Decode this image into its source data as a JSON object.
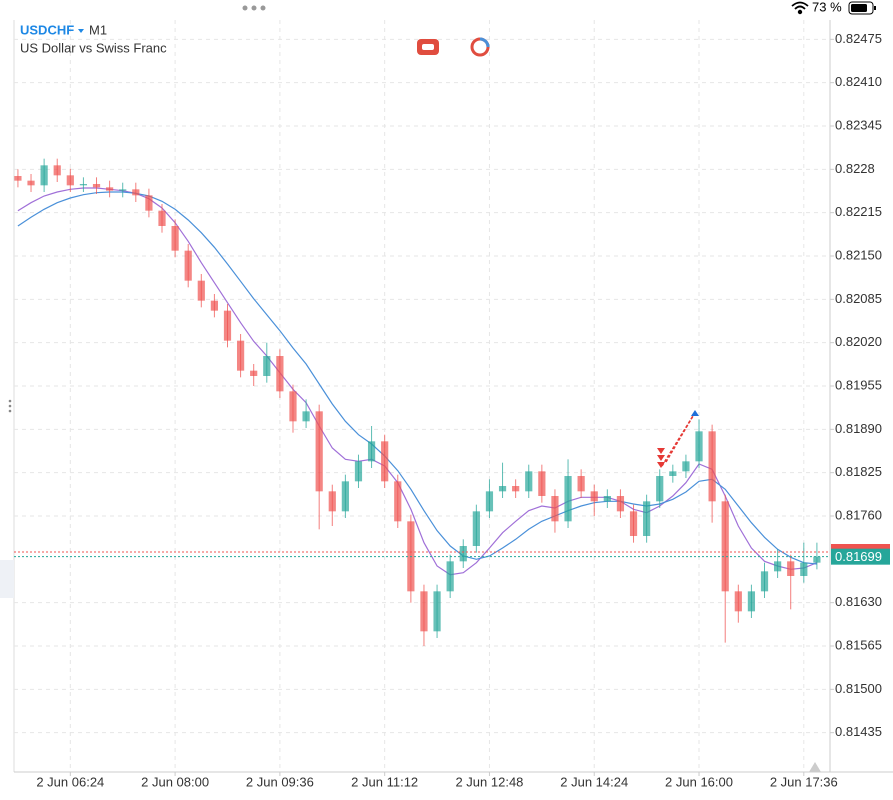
{
  "status": {
    "battery": "73 %"
  },
  "chart_data": {
    "type": "candlestick",
    "symbol": "USDCHF",
    "timeframe": "M1",
    "subtitle": "US Dollar vs Swiss Franc",
    "up_color": "#26a69a",
    "down_color": "#ef5350",
    "open": [
      0.8227,
      0.82263,
      0.82256,
      0.82286,
      0.82271,
      0.82256,
      0.82258,
      0.82253,
      0.82248,
      0.8225,
      0.82241,
      0.82218,
      0.82195,
      0.82158,
      0.82113,
      0.82083,
      0.82068,
      0.82023,
      0.81978,
      0.8197,
      0.82,
      0.81947,
      0.81902,
      0.81917,
      0.81797,
      0.81767,
      0.81812,
      0.81842,
      0.81872,
      0.81812,
      0.81752,
      0.81647,
      0.81587,
      0.81647,
      0.81692,
      0.81715,
      0.81767,
      0.81797,
      0.81805,
      0.81797,
      0.81827,
      0.8179,
      0.81752,
      0.8182,
      0.81797,
      0.81782,
      0.8179,
      0.81767,
      0.8173,
      0.81782,
      0.8182,
      0.81827,
      0.81842,
      0.81887,
      0.81782,
      0.81647,
      0.81617,
      0.81647,
      0.81677,
      0.81692,
      0.8167,
      0.8169
    ],
    "high": [
      0.8228,
      0.82273,
      0.82296,
      0.82296,
      0.82281,
      0.82268,
      0.82268,
      0.82263,
      0.8226,
      0.8226,
      0.82251,
      0.82228,
      0.82205,
      0.82168,
      0.82123,
      0.82093,
      0.82078,
      0.82033,
      0.81988,
      0.8202,
      0.8201,
      0.81957,
      0.81935,
      0.81927,
      0.81807,
      0.81822,
      0.81852,
      0.81895,
      0.81882,
      0.81822,
      0.81762,
      0.81657,
      0.81657,
      0.81702,
      0.81725,
      0.81777,
      0.81815,
      0.8184,
      0.81815,
      0.81837,
      0.81837,
      0.818,
      0.81845,
      0.8183,
      0.81807,
      0.818,
      0.818,
      0.81777,
      0.81792,
      0.8183,
      0.81837,
      0.81852,
      0.81905,
      0.81897,
      0.81792,
      0.81657,
      0.81657,
      0.8169,
      0.8171,
      0.81702,
      0.8172,
      0.8172
    ],
    "low": [
      0.82253,
      0.82246,
      0.82246,
      0.82261,
      0.82246,
      0.82246,
      0.82243,
      0.82238,
      0.82238,
      0.82231,
      0.82208,
      0.82185,
      0.82148,
      0.82103,
      0.82073,
      0.82058,
      0.82013,
      0.81968,
      0.81955,
      0.8196,
      0.81937,
      0.81885,
      0.81892,
      0.8174,
      0.81745,
      0.81757,
      0.81802,
      0.81832,
      0.81802,
      0.81742,
      0.8163,
      0.81565,
      0.81577,
      0.81637,
      0.81682,
      0.81705,
      0.81757,
      0.81787,
      0.81787,
      0.81787,
      0.8178,
      0.81735,
      0.81742,
      0.81787,
      0.8176,
      0.81772,
      0.81757,
      0.8172,
      0.8172,
      0.81772,
      0.8181,
      0.81817,
      0.81832,
      0.8175,
      0.8157,
      0.816,
      0.81607,
      0.81637,
      0.81667,
      0.8162,
      0.8166,
      0.8168
    ],
    "close": [
      0.82263,
      0.82256,
      0.82286,
      0.82271,
      0.82256,
      0.82258,
      0.82253,
      0.82248,
      0.8225,
      0.82241,
      0.82218,
      0.82195,
      0.82158,
      0.82113,
      0.82083,
      0.82068,
      0.82023,
      0.81978,
      0.8197,
      0.82,
      0.81947,
      0.81902,
      0.81917,
      0.81797,
      0.81767,
      0.81812,
      0.81842,
      0.81872,
      0.81812,
      0.81752,
      0.81647,
      0.81587,
      0.81647,
      0.81692,
      0.81715,
      0.81767,
      0.81797,
      0.81805,
      0.81797,
      0.81827,
      0.8179,
      0.81752,
      0.8182,
      0.81797,
      0.81782,
      0.8179,
      0.81767,
      0.8173,
      0.81782,
      0.8182,
      0.81827,
      0.81842,
      0.81887,
      0.81782,
      0.81647,
      0.81617,
      0.81647,
      0.81677,
      0.81692,
      0.8167,
      0.8169,
      0.81699
    ],
    "moving_averages": [
      {
        "color": "#a070d8",
        "values": [
          0.82218,
          0.8223,
          0.8224,
          0.82246,
          0.8225,
          0.82252,
          0.82252,
          0.8225,
          0.82248,
          0.82244,
          0.82236,
          0.82222,
          0.822,
          0.82172,
          0.8214,
          0.8211,
          0.8208,
          0.8205,
          0.82022,
          0.82,
          0.81975,
          0.8195,
          0.8193,
          0.81895,
          0.81862,
          0.81845,
          0.81842,
          0.81845,
          0.81835,
          0.8181,
          0.8177,
          0.8172,
          0.81685,
          0.81672,
          0.81675,
          0.8169,
          0.81712,
          0.81735,
          0.81752,
          0.81768,
          0.81775,
          0.81772,
          0.81782,
          0.81788,
          0.81788,
          0.81788,
          0.81782,
          0.8177,
          0.81765,
          0.81775,
          0.8179,
          0.8181,
          0.81838,
          0.8183,
          0.8179,
          0.81745,
          0.81712,
          0.81692,
          0.81685,
          0.8168,
          0.81682,
          0.8169
        ]
      },
      {
        "color": "#4a90d9",
        "values": [
          0.82195,
          0.82208,
          0.8222,
          0.8223,
          0.82237,
          0.82242,
          0.82245,
          0.82246,
          0.82246,
          0.82244,
          0.8224,
          0.82232,
          0.8222,
          0.82204,
          0.82185,
          0.82163,
          0.82138,
          0.82112,
          0.82086,
          0.82062,
          0.82038,
          0.82012,
          0.81988,
          0.81958,
          0.81928,
          0.81902,
          0.81882,
          0.81868,
          0.8185,
          0.81828,
          0.818,
          0.81768,
          0.81738,
          0.81715,
          0.817,
          0.81695,
          0.817,
          0.81712,
          0.81725,
          0.8174,
          0.81752,
          0.8176,
          0.81768,
          0.81775,
          0.8178,
          0.81782,
          0.81782,
          0.81778,
          0.81775,
          0.81778,
          0.81785,
          0.81796,
          0.81812,
          0.81815,
          0.818,
          0.81775,
          0.8175,
          0.81728,
          0.8171,
          0.81698,
          0.8169,
          0.81688
        ]
      }
    ],
    "current_price": 0.81699,
    "current_price_color": "#26a69a",
    "ask_price": 0.81706,
    "ask_color": "#ef5350",
    "xlim": [
      -0.3,
      62
    ],
    "ylim": [
      0.81376,
      0.82504
    ],
    "xticks": [
      {
        "value": 4,
        "label": "2 Jun 06:24"
      },
      {
        "value": 12,
        "label": "2 Jun 08:00"
      },
      {
        "value": 20,
        "label": "2 Jun 09:36"
      },
      {
        "value": 28,
        "label": "2 Jun 11:12"
      },
      {
        "value": 36,
        "label": "2 Jun 12:48"
      },
      {
        "value": 44,
        "label": "2 Jun 14:24"
      },
      {
        "value": 52,
        "label": "2 Jun 16:00"
      },
      {
        "value": 60,
        "label": "2 Jun 17:36"
      }
    ],
    "yticks": [
      0.82475,
      {
        "value": 0.8241,
        "label": "0.82410"
      },
      0.82345,
      0.8228,
      0.82215,
      {
        "value": 0.8215,
        "label": "0.82150"
      },
      0.82085,
      {
        "value": 0.8202,
        "label": "0.82020"
      },
      0.81955,
      {
        "value": 0.8189,
        "label": "0.81890"
      },
      0.81825,
      {
        "value": 0.8176,
        "label": "0.81760"
      },
      {
        "value": 0.8163,
        "label": "0.81630"
      },
      0.81565,
      {
        "value": 0.815,
        "label": "0.81500"
      },
      0.81435
    ],
    "grid": true
  }
}
